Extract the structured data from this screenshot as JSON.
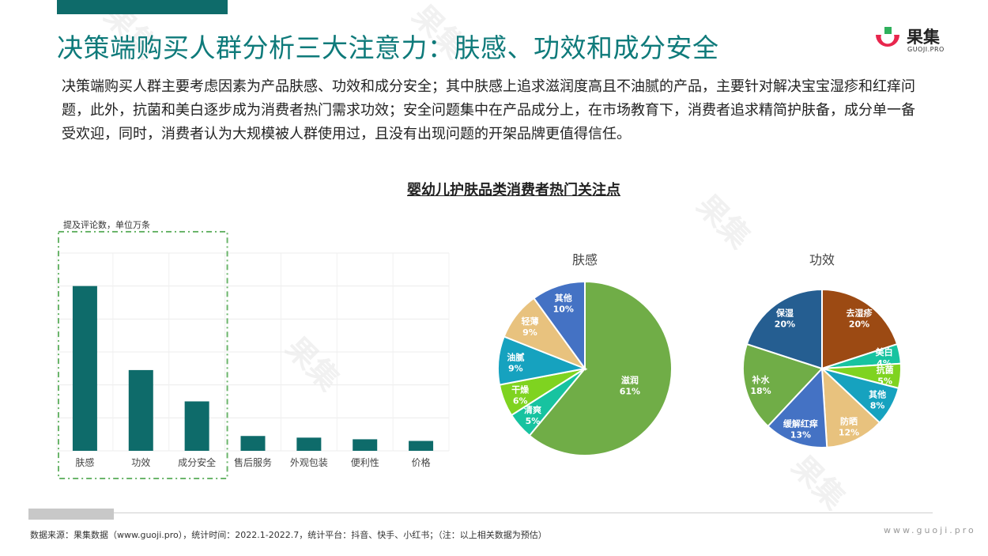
{
  "header": {
    "title": "决策端购买人群分析三大注意力：肤感、功效和成分安全",
    "brand_name": "果集",
    "brand_sub": "GUOJI.PRO"
  },
  "intro": "决策端购买人群主要考虑因素为产品肤感、功效和成分安全；其中肤感上追求滋润度高且不油腻的产品，主要针对解决宝宝湿疹和红痒问题，此外，抗菌和美白逐步成为消费者热门需求功效；安全问题集中在产品成分上，在市场教育下，消费者追求精简护肤备，成分单一备受欢迎，同时，消费者认为大规模被人群使用过，且没有出现问题的开架品牌更值得信任。",
  "chart_title": "婴幼儿护肤品类消费者热门关注点",
  "unit_label": "提及评论数，单位万条",
  "footer": {
    "source": "数据来源：果集数据（www.guoji.pro），统计时间：2022.1-2022.7，统计平台：抖音、快手、小红书；（注：以上相关数据为预估）",
    "site": "www.guoji.pro"
  },
  "colors": {
    "primary": "#0e6b6a",
    "title": "#0e7a7a",
    "highlight_box": "#6bb56b"
  },
  "chart_data": [
    {
      "type": "bar",
      "categories": [
        "肤感",
        "功效",
        "成分安全",
        "售后服务",
        "外观包装",
        "便利性",
        "价格"
      ],
      "values": [
        100,
        49,
        30,
        9,
        8,
        7,
        6
      ],
      "ylabel": "提及评论数，单位万条",
      "ylim": [
        0,
        120
      ],
      "highlighted": [
        "肤感",
        "功效",
        "成分安全"
      ]
    },
    {
      "type": "pie",
      "title": "肤感",
      "slices": [
        {
          "label": "滋润",
          "value": 61,
          "color": "#70ad47"
        },
        {
          "label": "清爽",
          "value": 5,
          "color": "#17c3a0"
        },
        {
          "label": "干燥",
          "value": 6,
          "color": "#7fd320"
        },
        {
          "label": "油腻",
          "value": 9,
          "color": "#16a2bf"
        },
        {
          "label": "轻薄",
          "value": 9,
          "color": "#e8c27e"
        },
        {
          "label": "其他",
          "value": 10,
          "color": "#4472c4"
        }
      ]
    },
    {
      "type": "pie",
      "title": "功效",
      "slices": [
        {
          "label": "去湿疹",
          "value": 20,
          "color": "#9c4a13"
        },
        {
          "label": "美白",
          "value": 4,
          "color": "#17c3a0"
        },
        {
          "label": "抗菌",
          "value": 5,
          "color": "#7fd320"
        },
        {
          "label": "其他",
          "value": 8,
          "color": "#16a2bf"
        },
        {
          "label": "防晒",
          "value": 12,
          "color": "#e8c27e"
        },
        {
          "label": "缓解红痒",
          "value": 13,
          "color": "#4472c4"
        },
        {
          "label": "补水",
          "value": 18,
          "color": "#70ad47"
        },
        {
          "label": "保湿",
          "value": 20,
          "color": "#255e91"
        }
      ]
    }
  ]
}
